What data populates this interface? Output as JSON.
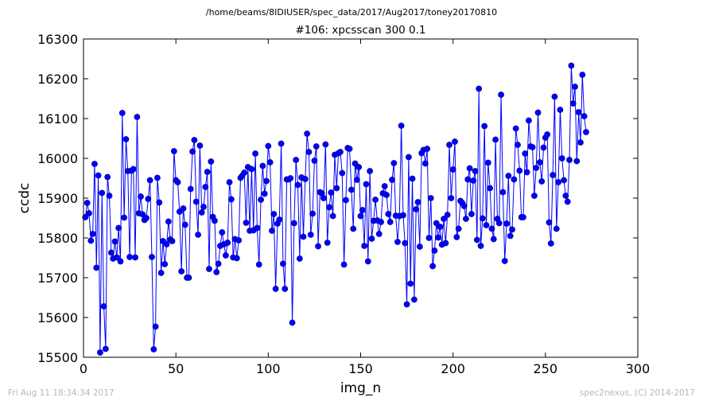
{
  "header": {
    "file_path": "/home/beams/8IDIUSER/spec_data/2017/Aug2017/toney20170810"
  },
  "footer": {
    "timestamp": "Fri Aug 11 18:34:34 2017",
    "credit": "spec2nexus, (C) 2014-2017"
  },
  "colors": {
    "series": "#0000ff",
    "marker_edge": "#000080",
    "axes": "#000000",
    "footer_text": "#b8b8b8"
  },
  "chart_data": {
    "type": "line",
    "title": "#106: xpcsscan 300 0.1",
    "xlabel": "img_n",
    "ylabel": "ccdc",
    "xlim": [
      0,
      300
    ],
    "ylim": [
      15500,
      16300
    ],
    "xticks": [
      0,
      50,
      100,
      150,
      200,
      250,
      300
    ],
    "yticks": [
      15500,
      15600,
      15700,
      15800,
      15900,
      16000,
      16100,
      16200,
      16300
    ],
    "xtick_labels": [
      "0",
      "50",
      "100",
      "150",
      "200",
      "250",
      "300"
    ],
    "ytick_labels": [
      "15500",
      "15600",
      "15700",
      "15800",
      "15900",
      "16000",
      "16100",
      "16200",
      "16300"
    ],
    "grid": false,
    "marker": "circle",
    "x_start": 1,
    "x_step": 1,
    "series": [
      {
        "values": [
          15852,
          15888,
          15862,
          15793,
          15810,
          15986,
          15725,
          15957,
          15512,
          15913,
          15628,
          15521,
          15953,
          15906,
          15763,
          15748,
          15791,
          15751,
          15825,
          15741,
          16114,
          15851,
          16048,
          15968,
          15752,
          15969,
          15973,
          15751,
          16104,
          15862,
          15904,
          15859,
          15845,
          15850,
          15898,
          15945,
          15752,
          15520,
          15577,
          15951,
          15889,
          15712,
          15792,
          15734,
          15784,
          15841,
          15796,
          15792,
          16018,
          15945,
          15940,
          15866,
          15716,
          15874,
          15833,
          15700,
          15700,
          15923,
          16017,
          16046,
          15891,
          15808,
          16032,
          15864,
          15878,
          15928,
          15966,
          15722,
          15992,
          15853,
          15843,
          15714,
          15735,
          15780,
          15814,
          15784,
          15756,
          15788,
          15940,
          15897,
          15751,
          15797,
          15749,
          15794,
          15951,
          15957,
          15964,
          15838,
          15978,
          15818,
          15973,
          15819,
          16012,
          15825,
          15733,
          15896,
          15981,
          15911,
          15943,
          16031,
          15990,
          15818,
          15860,
          15672,
          15836,
          15846,
          16037,
          15735,
          15672,
          15947,
          15947,
          15950,
          15587,
          15837,
          15996,
          15933,
          15748,
          15952,
          15803,
          15948,
          16062,
          16016,
          15808,
          15861,
          15994,
          16030,
          15779,
          15915,
          15912,
          15900,
          16035,
          15788,
          15877,
          15914,
          15855,
          16009,
          15925,
          16013,
          16016,
          15963,
          15733,
          15895,
          16026,
          16024,
          15921,
          15823,
          15987,
          15946,
          15978,
          15855,
          15870,
          15780,
          15935,
          15741,
          15968,
          15798,
          15843,
          15896,
          15844,
          15810,
          15840,
          15912,
          15930,
          15908,
          15860,
          15840,
          15946,
          15988,
          15856,
          15790,
          15855,
          16082,
          15857,
          15787,
          15633,
          16003,
          15685,
          15949,
          15645,
          15872,
          15890,
          15778,
          16013,
          16021,
          15987,
          16024,
          15800,
          15900,
          15729,
          15768,
          15837,
          15801,
          15828,
          15783,
          15848,
          15787,
          15858,
          16034,
          15900,
          15972,
          16042,
          15802,
          15823,
          15893,
          15888,
          15880,
          15848,
          15947,
          15975,
          15860,
          15944,
          15968,
          15795,
          16175,
          15780,
          15849,
          16081,
          15832,
          15989,
          15925,
          15823,
          15797,
          16047,
          15848,
          15837,
          16160,
          15915,
          15742,
          15836,
          15956,
          15805,
          15821,
          15947,
          16075,
          16034,
          15969,
          15852,
          15852,
          16012,
          15965,
          16095,
          16030,
          16028,
          15906,
          15976,
          16115,
          15990,
          15942,
          16027,
          16052,
          16060,
          15839,
          15786,
          15958,
          16155,
          15823,
          15940,
          16122,
          16000,
          15945,
          15906,
          15891,
          15996,
          16233,
          16138,
          16180,
          15993,
          16116,
          16040,
          16210,
          16106,
          16066
        ]
      }
    ]
  }
}
